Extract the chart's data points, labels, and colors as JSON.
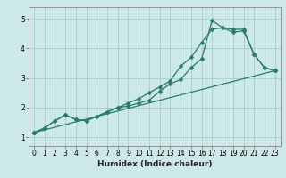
{
  "title": "",
  "xlabel": "Humidex (Indice chaleur)",
  "ylabel": "",
  "bg_color": "#cce8e8",
  "grid_color": "#aacccc",
  "line_color": "#2a7a6a",
  "xlim": [
    -0.5,
    23.5
  ],
  "ylim": [
    0.7,
    5.4
  ],
  "xticks": [
    0,
    1,
    2,
    3,
    4,
    5,
    6,
    7,
    8,
    9,
    10,
    11,
    12,
    13,
    14,
    15,
    16,
    17,
    18,
    19,
    20,
    21,
    22,
    23
  ],
  "yticks": [
    1,
    2,
    3,
    4,
    5
  ],
  "line1_x": [
    0,
    1,
    2,
    3,
    4,
    5,
    6,
    7,
    8,
    9,
    10,
    11,
    12,
    13,
    14,
    15,
    16,
    17,
    18,
    19,
    20,
    21,
    22,
    23
  ],
  "line1_y": [
    1.15,
    1.3,
    1.55,
    1.75,
    1.6,
    1.55,
    1.7,
    1.85,
    2.0,
    2.05,
    2.15,
    2.25,
    2.55,
    2.8,
    2.95,
    3.35,
    3.65,
    4.95,
    4.7,
    4.65,
    4.65,
    3.8,
    3.35,
    3.25
  ],
  "line2_x": [
    0,
    1,
    2,
    3,
    4,
    5,
    6,
    7,
    8,
    9,
    10,
    11,
    12,
    13,
    14,
    15,
    16,
    17,
    18,
    19,
    20,
    21,
    22,
    23
  ],
  "line2_y": [
    1.15,
    1.3,
    1.55,
    1.75,
    1.6,
    1.55,
    1.7,
    1.85,
    2.0,
    2.15,
    2.3,
    2.5,
    2.7,
    2.9,
    3.4,
    3.7,
    4.2,
    4.65,
    4.7,
    4.55,
    4.6,
    3.8,
    3.35,
    3.25
  ],
  "line3_x": [
    0,
    23
  ],
  "line3_y": [
    1.15,
    3.25
  ],
  "xlabel_fontsize": 6.5,
  "xlabel_fontweight": "bold",
  "tick_fontsize": 5.5,
  "marker_size": 2.5,
  "line_width": 0.9
}
